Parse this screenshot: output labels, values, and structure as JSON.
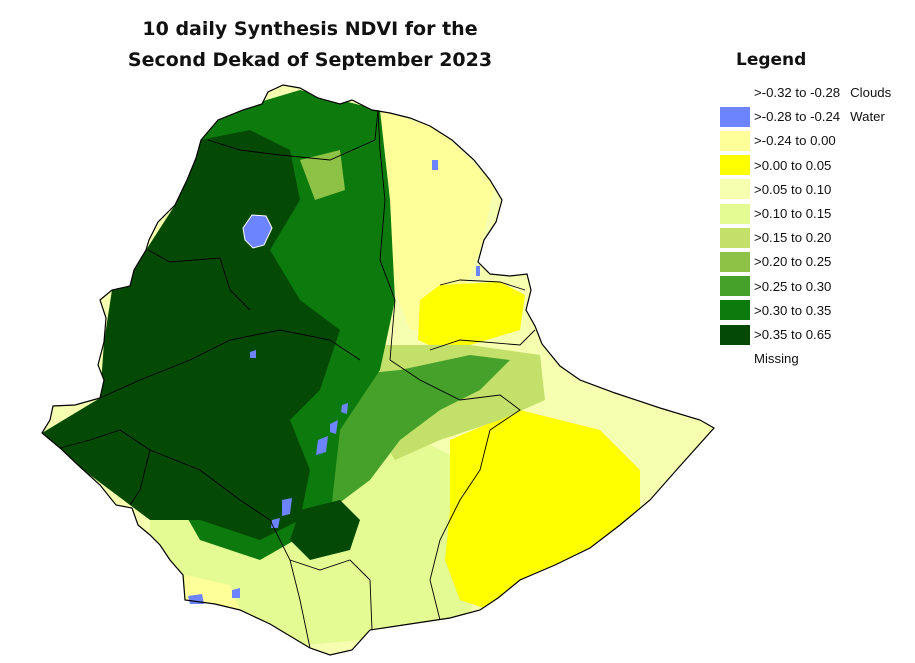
{
  "title": {
    "line1": "10 daily Synthesis NDVI for the",
    "line2": "Second Dekad of September 2023"
  },
  "legend": {
    "title": "Legend",
    "items": [
      {
        "label": ">-0.32 to -0.28",
        "extra": "Clouds",
        "color": "#ffffff"
      },
      {
        "label": ">-0.28 to -0.24",
        "extra": "Water",
        "color": "#6d84ff"
      },
      {
        "label": ">-0.24 to 0.00",
        "extra": "",
        "color": "#ffff99"
      },
      {
        "label": ">0.00 to 0.05",
        "extra": "",
        "color": "#ffff00"
      },
      {
        "label": ">0.05 to 0.10",
        "extra": "",
        "color": "#f6ffb0"
      },
      {
        "label": ">0.10 to 0.15",
        "extra": "",
        "color": "#e4fa92"
      },
      {
        "label": ">0.15 to 0.20",
        "extra": "",
        "color": "#c3e06a"
      },
      {
        "label": ">0.20 to 0.25",
        "extra": "",
        "color": "#8ec247"
      },
      {
        "label": ">0.25 to 0.30",
        "extra": "",
        "color": "#45a12a"
      },
      {
        "label": ">0.30 to 0.35",
        "extra": "",
        "color": "#0d7a0d"
      },
      {
        "label": ">0.35 to 0.65",
        "extra": "",
        "color": "#044a04"
      },
      {
        "label": "Missing",
        "extra": "",
        "color": "#ffffff"
      }
    ]
  },
  "map": {
    "region": "Ethiopia",
    "boundary_color": "#000000",
    "class_colors": {
      "very_dense": "#044a04",
      "dense": "#0d7a0d",
      "moderate": "#45a12a",
      "light_green": "#8ec247",
      "pale_green": "#c3e06a",
      "low": "#e4fa92",
      "very_low": "#f6ffb0",
      "bright_yellow": "#ffff00",
      "pale_yellow": "#ffff99",
      "water": "#6d84ff"
    }
  }
}
